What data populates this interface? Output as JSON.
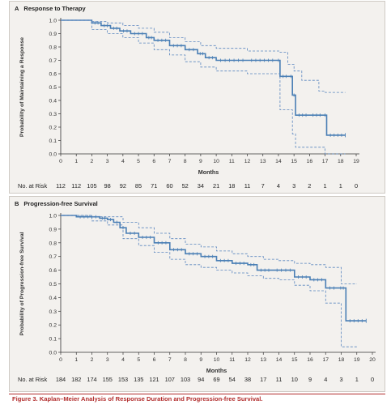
{
  "chart_data": [
    {
      "type": "line",
      "letter": "A",
      "title": "Response to Therapy",
      "xlabel": "Months",
      "ylabel": "Probability of Maintaining a Response",
      "xlim": [
        0,
        19
      ],
      "ylim": [
        0.0,
        1.0
      ],
      "x_ticks": [
        0,
        1,
        2,
        3,
        4,
        5,
        6,
        7,
        8,
        9,
        10,
        11,
        12,
        13,
        14,
        15,
        16,
        17,
        18,
        19
      ],
      "y_ticks": [
        "0.0",
        "0.1",
        "0.2",
        "0.3",
        "0.4",
        "0.5",
        "0.6",
        "0.7",
        "0.8",
        "0.9",
        "1.0"
      ],
      "series": [
        {
          "role": "estimate",
          "x": [
            0,
            2,
            2.6,
            3.2,
            3.8,
            4.5,
            5.5,
            6.0,
            7.0,
            8.0,
            8.8,
            9.3,
            10.0,
            12.0,
            13.9,
            14.1,
            14.7,
            14.9,
            15.1,
            16.0,
            16.9,
            17.1,
            18.3
          ],
          "y": [
            1.0,
            0.98,
            0.96,
            0.94,
            0.92,
            0.9,
            0.87,
            0.85,
            0.81,
            0.78,
            0.75,
            0.72,
            0.7,
            0.7,
            0.7,
            0.58,
            0.58,
            0.44,
            0.29,
            0.29,
            0.29,
            0.14,
            0.14
          ]
        },
        {
          "role": "upper-ci",
          "x": [
            0,
            2,
            3,
            4,
            5,
            6,
            7,
            8,
            9,
            10,
            12,
            14.1,
            14.6,
            15.0,
            15.5,
            16.4,
            16.6,
            17.0,
            18.3
          ],
          "y": [
            1.0,
            0.99,
            0.98,
            0.96,
            0.94,
            0.91,
            0.87,
            0.84,
            0.81,
            0.79,
            0.77,
            0.76,
            0.67,
            0.62,
            0.55,
            0.55,
            0.47,
            0.46,
            0.46
          ]
        },
        {
          "role": "lower-ci",
          "x": [
            0,
            2,
            3,
            4,
            5,
            6,
            7,
            8,
            9,
            10,
            12,
            13.9,
            14.1,
            14.7,
            14.9,
            15.1,
            16.5,
            17.0,
            18.3
          ],
          "y": [
            1.0,
            0.93,
            0.9,
            0.87,
            0.83,
            0.78,
            0.74,
            0.69,
            0.65,
            0.62,
            0.6,
            0.6,
            0.33,
            0.33,
            0.15,
            0.05,
            0.05,
            0.0,
            0.0
          ]
        }
      ],
      "risk_label": "No. at Risk",
      "at_risk": [
        "112",
        "112",
        "105",
        "98",
        "92",
        "85",
        "71",
        "60",
        "52",
        "34",
        "21",
        "18",
        "11",
        "7",
        "4",
        "3",
        "2",
        "1",
        "1",
        "0"
      ]
    },
    {
      "type": "line",
      "letter": "B",
      "title": "Progression-free Survival",
      "xlabel": "Months",
      "ylabel": "Probability of Progression-free Survival",
      "xlim": [
        0,
        20
      ],
      "ylim": [
        0.0,
        1.0
      ],
      "x_ticks": [
        0,
        1,
        2,
        3,
        4,
        5,
        6,
        7,
        8,
        9,
        10,
        11,
        12,
        13,
        14,
        15,
        16,
        17,
        18,
        19,
        20
      ],
      "y_ticks": [
        "0.0",
        "0.1",
        "0.2",
        "0.3",
        "0.4",
        "0.5",
        "0.6",
        "0.7",
        "0.8",
        "0.9",
        "1.0"
      ],
      "series": [
        {
          "role": "estimate",
          "x": [
            0,
            1.0,
            2.5,
            3.0,
            3.4,
            3.8,
            4.2,
            5.0,
            6.0,
            7.0,
            8.0,
            9.0,
            10.0,
            11.0,
            12.0,
            12.6,
            13.6,
            15.0,
            16.0,
            17.0,
            17.8,
            18.3,
            19.6
          ],
          "y": [
            1.0,
            0.99,
            0.98,
            0.97,
            0.95,
            0.91,
            0.87,
            0.84,
            0.8,
            0.75,
            0.72,
            0.7,
            0.67,
            0.65,
            0.64,
            0.6,
            0.6,
            0.55,
            0.53,
            0.47,
            0.47,
            0.23,
            0.23
          ]
        },
        {
          "role": "upper-ci",
          "x": [
            0,
            2,
            3,
            4,
            5,
            6,
            7,
            8,
            9,
            10,
            11,
            12,
            13,
            14,
            15,
            16,
            17,
            18,
            19
          ],
          "y": [
            1.0,
            0.99,
            0.99,
            0.95,
            0.91,
            0.87,
            0.83,
            0.79,
            0.77,
            0.74,
            0.72,
            0.7,
            0.68,
            0.67,
            0.65,
            0.64,
            0.62,
            0.5,
            0.5
          ]
        },
        {
          "role": "lower-ci",
          "x": [
            0,
            2,
            3,
            4,
            5,
            6,
            7,
            8,
            9,
            10,
            11,
            12,
            13,
            14,
            15,
            16,
            17,
            18,
            19
          ],
          "y": [
            1.0,
            0.96,
            0.93,
            0.83,
            0.78,
            0.73,
            0.68,
            0.64,
            0.62,
            0.6,
            0.58,
            0.56,
            0.54,
            0.53,
            0.49,
            0.45,
            0.36,
            0.04,
            0.04
          ]
        }
      ],
      "risk_label": "No. at Risk",
      "at_risk": [
        "184",
        "182",
        "174",
        "155",
        "153",
        "135",
        "121",
        "107",
        "103",
        "94",
        "69",
        "54",
        "38",
        "17",
        "11",
        "10",
        "9",
        "4",
        "3",
        "1",
        "0"
      ]
    }
  ],
  "caption": {
    "label": "Figure 3.",
    "text": "Kaplan–Meier Analysis of Response Duration and Progression-free Survival."
  },
  "colors": {
    "estimate": "#4a7fb5",
    "ci": "#5a86bf",
    "axis": "#333333",
    "caption": "#b22d2d"
  }
}
